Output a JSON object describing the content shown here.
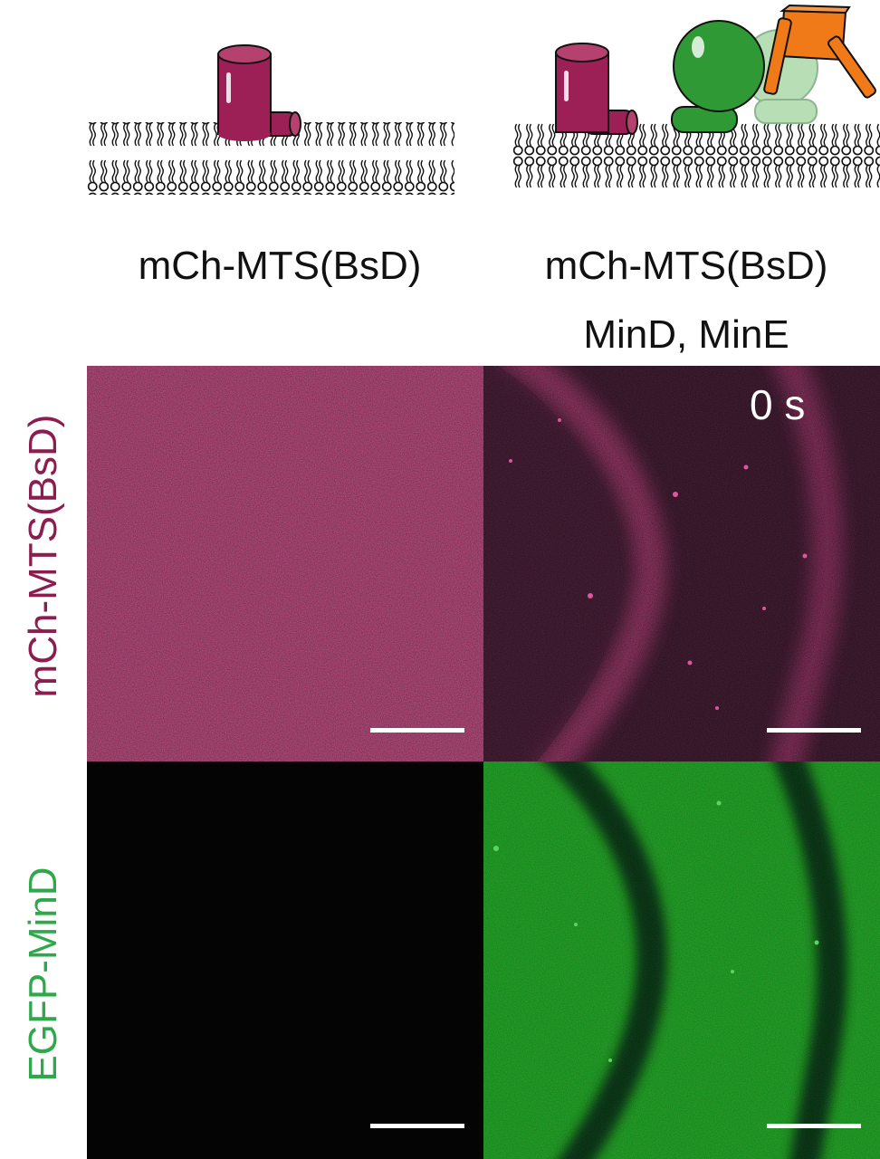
{
  "columns": {
    "left": {
      "line1": "mCh-MTS(BsD)"
    },
    "right": {
      "line1": "mCh-MTS(BsD)",
      "line2": "MinD, MinE"
    }
  },
  "rows": {
    "top": {
      "label": "mCh-MTS(BsD)"
    },
    "bottom": {
      "label": "EGFP-MinD"
    }
  },
  "time_label": "0 s",
  "colors": {
    "magenta_text": "#8b1d4f",
    "green_text": "#2ea84a",
    "mcherry_protein": "#9c1f55",
    "mind_protein": "#2f9a35",
    "mine_protein": "#f07a18",
    "magenta_fluor": "#c8407e",
    "magenta_dim": "#3a1029",
    "green_fluor": "#1fb524",
    "green_dark": "#06300a"
  },
  "icons": [
    "membrane-bilayer-icon",
    "mcherry-mts-protein-icon",
    "mind-protein-icon",
    "mine-protein-icon"
  ]
}
